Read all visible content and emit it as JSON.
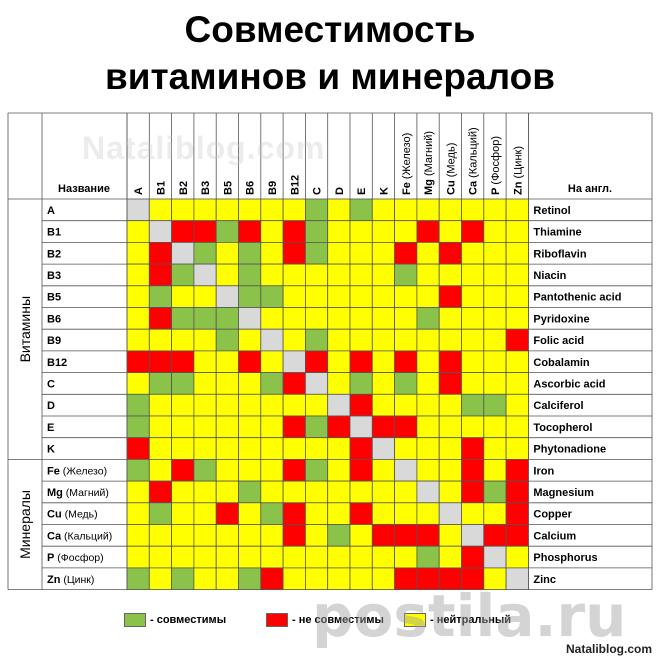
{
  "title_line1": "Совместимость",
  "title_line2": "витаминов и минералов",
  "watermark": "Nataliblog.com",
  "watermark_bottom": "postila.ru",
  "footer_brand": "Nataliblog.com",
  "header_name": "Название",
  "header_eng": "На англ.",
  "group_vitamins": "Витамины",
  "group_minerals": "Минералы",
  "legend": [
    {
      "color": "#8bc34a",
      "label": "- совместимы"
    },
    {
      "color": "#ff0000",
      "label": "- не совместимы"
    },
    {
      "color": "#ffff00",
      "label": "- нейтральный"
    }
  ],
  "colors": {
    "G": "#8bc34a",
    "R": "#ff0000",
    "Y": "#ffff00",
    "X": "#d9d9d9"
  },
  "chart_data": {
    "type": "heatmap",
    "columns": [
      "A",
      "B1",
      "B2",
      "B3",
      "B5",
      "B6",
      "B9",
      "B12",
      "C",
      "D",
      "E",
      "K",
      "Fe (Железо)",
      "Mg (Магний)",
      "Cu (Медь)",
      "Ca (Кальций)",
      "P (Фосфор)",
      "Zn (Цинк)"
    ],
    "rows": [
      {
        "label": "A",
        "eng": "Retinol",
        "cells": "XYYYYYYYGYGYYYYYYY"
      },
      {
        "label": "B1",
        "eng": "Thiamine",
        "cells": "YXRRGRYRGYYYYRYRYY"
      },
      {
        "label": "B2",
        "eng": "Riboflavin",
        "cells": "YRXGYGYRGYYYRYRYYY"
      },
      {
        "label": "B3",
        "eng": "Niacin",
        "cells": "YRGXYGYYYYYYGYYYYY"
      },
      {
        "label": "B5",
        "eng": "Pantothenic acid",
        "cells": "YGYYXGGYYYYYYYRYYY"
      },
      {
        "label": "B6",
        "eng": "Pyridoxine",
        "cells": "YRGGGXYYYYYYYGYYYY"
      },
      {
        "label": "B9",
        "eng": "Folic acid",
        "cells": "YYYYGYXYGYYYYYYYYR"
      },
      {
        "label": "B12",
        "eng": "Cobalamin",
        "cells": "RRRYYRYXRYRYRYRYYY"
      },
      {
        "label": "C",
        "eng": "Ascorbic acid",
        "cells": "YGGYYYGRXYGYGYRYYY"
      },
      {
        "label": "D",
        "eng": "Calciferol",
        "cells": "GYYYYYYYYXRYYYYGGY"
      },
      {
        "label": "E",
        "eng": "Tocopherol",
        "cells": "GYYYYYYRGRXRRYYYYY"
      },
      {
        "label": "K",
        "eng": "Phytonadione",
        "cells": "RYYYYYYYYYRXYYYRYY"
      },
      {
        "label": "Fe (Железо)",
        "eng": "Iron",
        "cells": "GYRGYYYRGYRYXYYRYR"
      },
      {
        "label": "Mg (Магний)",
        "eng": "Magnesium",
        "cells": "YRYYYGYYYYYYYXYRGR"
      },
      {
        "label": "Cu (Медь)",
        "eng": "Copper",
        "cells": "YGYYRYGRYYRYYYXYYR"
      },
      {
        "label": "Ca (Кальций)",
        "eng": "Calcium",
        "cells": "YYYYYYYRYGYRRRYXRR"
      },
      {
        "label": "P (Фосфор)",
        "eng": "Phosphorus",
        "cells": "YYYYYYYYYYYYYGYRXY"
      },
      {
        "label": "Zn (Цинк)",
        "eng": "Zinc",
        "cells": "GYGYYGRYYYYYRRRRYX"
      }
    ]
  }
}
